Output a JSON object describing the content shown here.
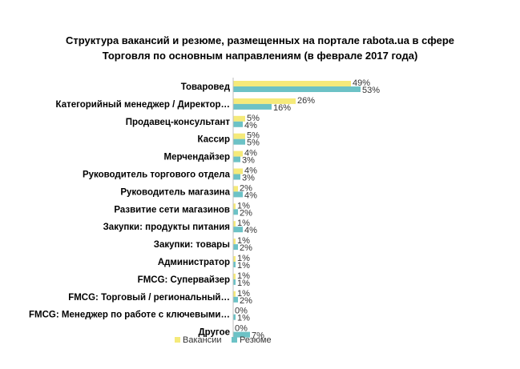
{
  "chart_data": {
    "type": "bar",
    "orientation": "horizontal",
    "title_line1": "Структура вакансий и резюме, размещенных на портале rabota.ua в сфере",
    "title_line2": "Торговля по основным направлениям (в феврале 2017 года)",
    "categories": [
      "Товаровед",
      "Категорийный менеджер / Директор…",
      "Продавец-консультант",
      "Кассир",
      "Мерчендайзер",
      "Руководитель торгового  отдела",
      "Руководитель магазина",
      "Развитие сети магазинов",
      "Закупки: продукты питания",
      "Закупки: товары",
      "Администратор",
      "FMCG: Супервайзер",
      "FMCG: Торговый / региональный…",
      "FMCG: Менеджер по работе с ключевыми…",
      "Другое"
    ],
    "series": [
      {
        "name": "Вакансии",
        "color": "#f5ea7a",
        "values": [
          49,
          26,
          5,
          5,
          4,
          4,
          2,
          1,
          1,
          1,
          1,
          1,
          1,
          0,
          0
        ],
        "labels": [
          "49%",
          "26%",
          "5%",
          "5%",
          "4%",
          "4%",
          "2%",
          "1%",
          "1%",
          "1%",
          "1%",
          "1%",
          "1%",
          "0%",
          "0%"
        ]
      },
      {
        "name": "Резюме",
        "color": "#6cc2c6",
        "values": [
          53,
          16,
          4,
          5,
          3,
          3,
          4,
          2,
          4,
          2,
          1,
          1,
          2,
          1,
          7
        ],
        "labels": [
          "53%",
          "16%",
          "4%",
          "5%",
          "3%",
          "3%",
          "4%",
          "2%",
          "4%",
          "2%",
          "1%",
          "1%",
          "2%",
          "1%",
          "7%"
        ]
      }
    ],
    "xlim": [
      0,
      60
    ],
    "legend_position": "bottom",
    "grid": false
  }
}
